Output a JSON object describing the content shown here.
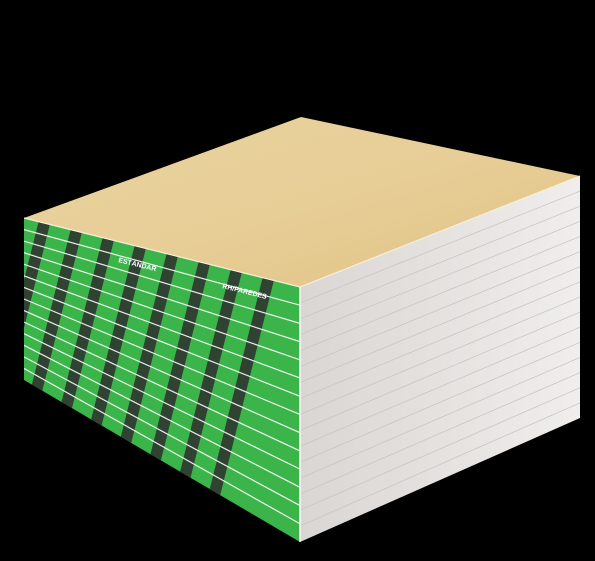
{
  "image": {
    "subject": "stack of drywall panels",
    "background_color": "#000000"
  },
  "product": {
    "top_face_color": "#e8cf98",
    "side_face_color": "#e6e3e0",
    "edge_label_color": "#3bb54a",
    "edge_stripe_color": "#2f2f2f",
    "edge_label_text": "ESTÁNDAR",
    "edge_label_text_2": "RH/PAREDES"
  }
}
